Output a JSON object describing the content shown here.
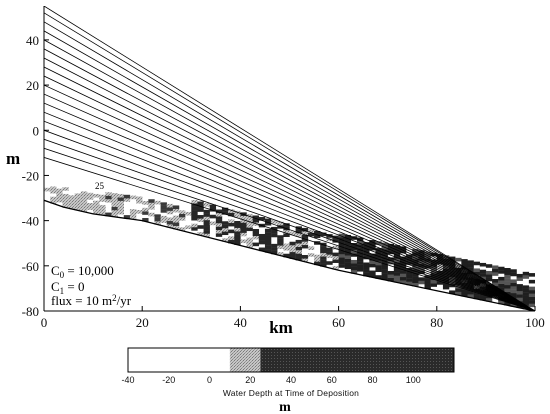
{
  "chart_data": {
    "type": "line",
    "xlabel": "km",
    "ylabel": "m",
    "xlim": [
      0,
      100
    ],
    "ylim": [
      -80,
      55
    ],
    "xticks": [
      "0",
      "20",
      "40",
      "60",
      "80",
      "100"
    ],
    "yticks": [
      "40",
      "20",
      "0",
      "-20",
      "-40",
      "-60",
      "-80"
    ],
    "grid": false,
    "annotations": {
      "params": [
        "C0 = 10,000",
        "C1 = 0",
        "flux = 10 m²/yr"
      ],
      "isochron_label": "25"
    },
    "series": [
      {
        "x": [
          0,
          4,
          10,
          20,
          40,
          60,
          80,
          100
        ],
        "y": [
          -31,
          -34,
          -37,
          -40,
          -51,
          -62,
          -71,
          -80
        ]
      },
      {
        "x": [
          0,
          100
        ],
        "y": [
          -12,
          -80
        ]
      },
      {
        "x": [
          0,
          100
        ],
        "y": [
          -8,
          -80
        ]
      },
      {
        "x": [
          0,
          100
        ],
        "y": [
          -4,
          -80
        ]
      },
      {
        "x": [
          0,
          100
        ],
        "y": [
          0,
          -80
        ]
      },
      {
        "x": [
          0,
          100
        ],
        "y": [
          4,
          -80
        ]
      },
      {
        "x": [
          0,
          100
        ],
        "y": [
          8,
          -80
        ]
      },
      {
        "x": [
          0,
          100
        ],
        "y": [
          12,
          -80
        ]
      },
      {
        "x": [
          0,
          100
        ],
        "y": [
          16,
          -80
        ]
      },
      {
        "x": [
          0,
          100
        ],
        "y": [
          20,
          -80
        ]
      },
      {
        "x": [
          0,
          100
        ],
        "y": [
          24,
          -80
        ]
      },
      {
        "x": [
          0,
          100
        ],
        "y": [
          28,
          -80
        ]
      },
      {
        "x": [
          0,
          100
        ],
        "y": [
          32,
          -80
        ]
      },
      {
        "x": [
          0,
          100
        ],
        "y": [
          36,
          -80
        ]
      },
      {
        "x": [
          0,
          100
        ],
        "y": [
          40,
          -80
        ]
      },
      {
        "x": [
          0,
          100
        ],
        "y": [
          44,
          -80
        ]
      },
      {
        "x": [
          0,
          100
        ],
        "y": [
          48,
          -80
        ]
      },
      {
        "x": [
          0,
          100
        ],
        "y": [
          52,
          -80
        ]
      },
      {
        "x": [
          0,
          100
        ],
        "y": [
          55,
          -80
        ]
      }
    ],
    "colorbar": {
      "label": "Water Depth at Time of Deposition",
      "unit": "m",
      "range": [
        -40,
        120
      ],
      "ticks": [
        "-40",
        "-20",
        "0",
        "20",
        "40",
        "60",
        "80",
        "100"
      ],
      "bands": [
        {
          "from": -40,
          "to": 10,
          "color": "#ffffff"
        },
        {
          "from": 10,
          "to": 25,
          "color": "#b3b3b3"
        },
        {
          "from": 25,
          "to": 120,
          "color": "#262626"
        }
      ]
    }
  }
}
